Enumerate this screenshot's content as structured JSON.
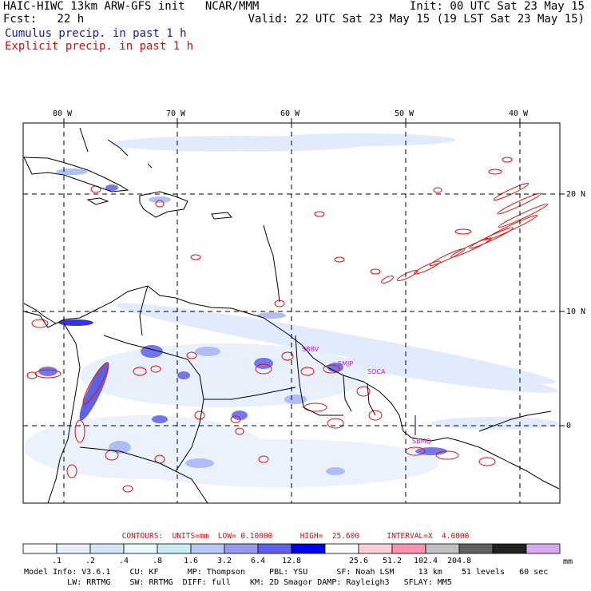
{
  "header": {
    "line1_left": "HAIC-HIWC 13km ARW-GFS init   NCAR/MMM",
    "line1_right": "Init: 00 UTC Sat 23 May 15",
    "line2_left": "Fcst:   22 h",
    "line2_right": "Valid: 22 UTC Sat 23 May 15 (19 LST Sat 23 May 15)",
    "line3": "Cumulus precip. in past 1 h",
    "line4": "Explicit precip. in past 1 h"
  },
  "map": {
    "lon_labels": [
      "80 W",
      "70 W",
      "60 W",
      "50 W",
      "40 W"
    ],
    "lat_labels": [
      "20 N",
      "10 N",
      "0"
    ],
    "city_labels": [
      "SBBV",
      "SMJP",
      "SOCA",
      "SBMQ"
    ]
  },
  "contours": {
    "text": "CONTOURS:  UNITS=mm  LOW= 0.10000      HIGH=  25.600      INTERVAL=X  4.0000"
  },
  "scale": {
    "labels": [
      ".1",
      ".2",
      ".4",
      ".8",
      "1.6",
      "3.2",
      "6.4",
      "12.8",
      "25.6",
      "51.2",
      "102.4",
      "204.8"
    ],
    "unit": "mm",
    "colors": [
      "#ffffff",
      "#e8f0ff",
      "#d4e4fc",
      "#e8fcff",
      "#c8ecf4",
      "#b8c8f8",
      "#9898f0",
      "#6060f0",
      "#0000e8",
      "#ffffff",
      "#ffd0d8",
      "#ff90b0",
      "#c0c0c0",
      "#606060",
      "#202020",
      "#d8a8f0"
    ]
  },
  "footer": {
    "line1": "Model Info: V3.6.1    CU: KF      MP: Thompson     PBL: YSU      SF: Noah LSM     13 km    51 levels   60 sec",
    "line2": "         LW: RRTMG    SW: RRTMG  DIFF: full    KM: 2D Smagor DAMP: Rayleigh3   SFLAY: MM5"
  }
}
